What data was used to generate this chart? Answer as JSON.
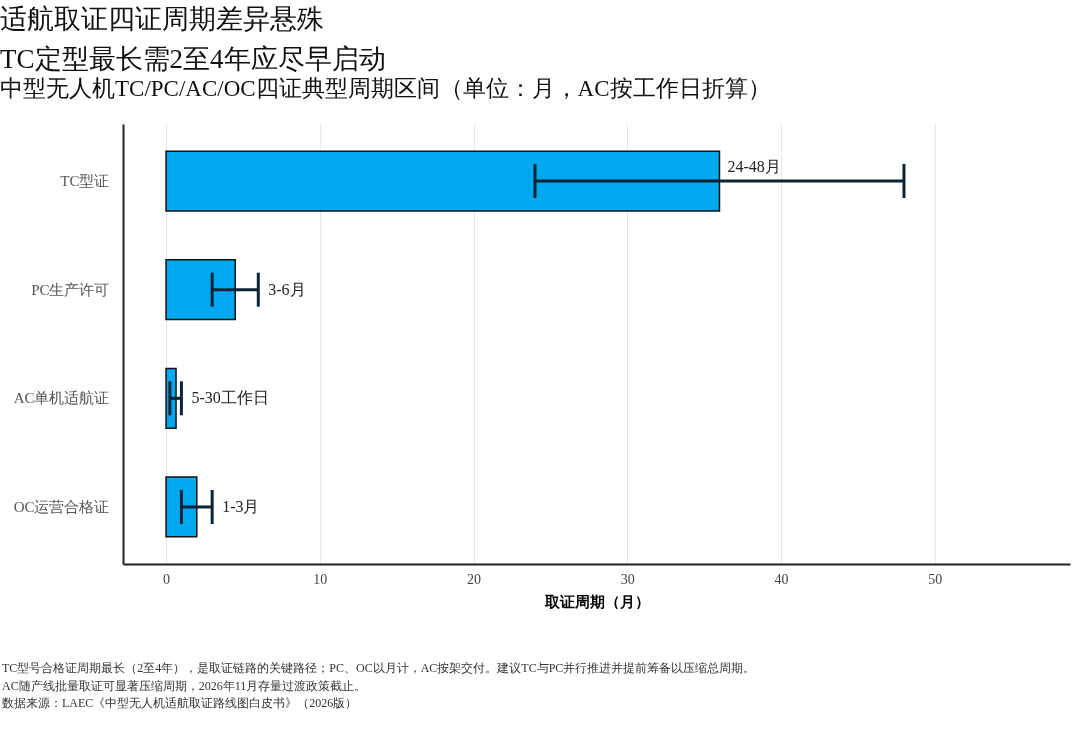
{
  "chart_data": {
    "type": "bar",
    "orientation": "horizontal",
    "title": "适航取证四证周期差异悬殊\nTC定型最长需2至4年应尽早启动",
    "subtitle": "中型无人机TC/PC/AC/OC四证典型周期区间（单位：月，AC按工作日折算）",
    "xlabel": "取证周期（月）",
    "categories": [
      "TC型证",
      "PC生产许可",
      "AC单机适航证",
      "OC运营合格证"
    ],
    "values": [
      36,
      4.5,
      0.65,
      2
    ],
    "color": "#00a8f0",
    "errors": [
      [
        24,
        48
      ],
      [
        3,
        6
      ],
      [
        0.25,
        1
      ],
      [
        1,
        3
      ]
    ],
    "value_labels": [
      "24-48月",
      "3-6月",
      "5-30工作日",
      "1-3月"
    ],
    "xlim": [
      -2.8,
      58.8
    ],
    "xticks": [
      0,
      10,
      20,
      30,
      40,
      50
    ],
    "grid": "x",
    "legend": false,
    "annotations": [
      "TC型号合格证周期最长（2至4年），是取证链路的关键路径；PC、OC以月计，AC按架交付。建议TC与PC并行推进并提前筹备以压缩总周期。",
      "AC随产线批量取证可显著压缩周期，2026年11月存量过渡政策截止。",
      "数据来源：LAEC《中型无人机适航取证路线图白皮书》（2026版）"
    ]
  }
}
